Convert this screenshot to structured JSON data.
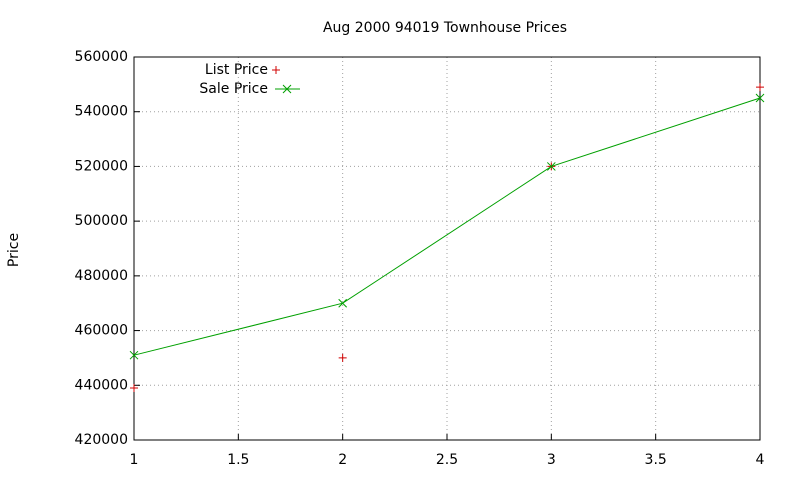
{
  "chart_data": {
    "type": "line",
    "title": "Aug 2000 94019 Townhouse Prices",
    "ylabel": "Price",
    "x": [
      1,
      2,
      3,
      4
    ],
    "series": [
      {
        "name": "List Price",
        "color": "#d00000",
        "style": "points",
        "values": [
          439000,
          450000,
          520000,
          549000
        ]
      },
      {
        "name": "Sale Price",
        "color": "#00a000",
        "style": "linespoints",
        "values": [
          451000,
          470000,
          520000,
          545000
        ]
      }
    ],
    "xlim": [
      1,
      4
    ],
    "xticks": [
      1,
      1.5,
      2,
      2.5,
      3,
      3.5,
      4
    ],
    "ylim": [
      420000,
      560000
    ],
    "yticks": [
      420000,
      440000,
      460000,
      480000,
      500000,
      520000,
      540000,
      560000
    ],
    "grid": true,
    "legend": "top-left"
  }
}
